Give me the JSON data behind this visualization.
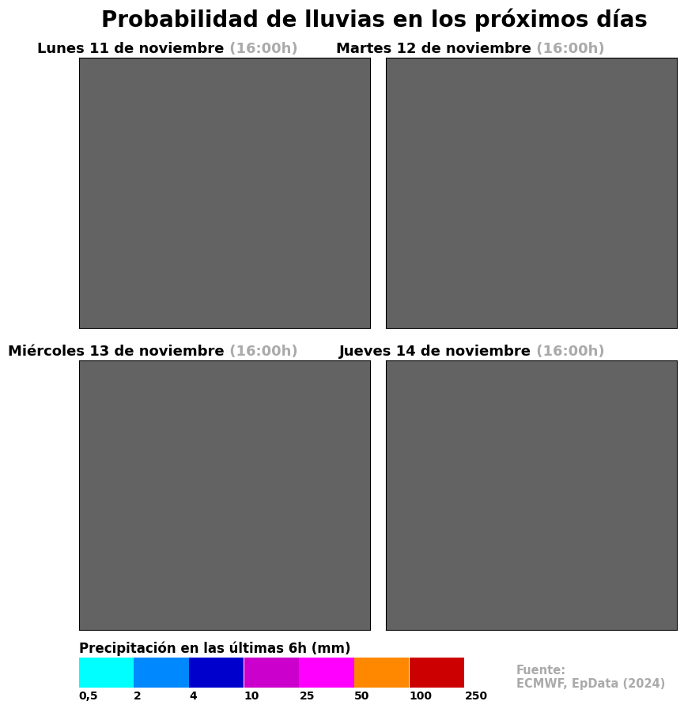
{
  "title": "Probabilidad de lluvias en los próximos días",
  "panels": [
    {
      "title_black": "Lunes 11 de noviembre",
      "title_gray": " (16:00h)"
    },
    {
      "title_black": "Martes 12 de noviembre",
      "title_gray": " (16:00h)"
    },
    {
      "title_black": "Miércoles 13 de noviembre",
      "title_gray": " (16:00h)"
    },
    {
      "title_black": "Jueves 14 de noviembre",
      "title_gray": " (16:00h)"
    }
  ],
  "legend_label": "Precipitación en las últimas 6h (mm)",
  "legend_colors": [
    "#00FFFF",
    "#0088FF",
    "#0000CC",
    "#CC00CC",
    "#FF00FF",
    "#FF8800",
    "#CC0000"
  ],
  "legend_values": [
    "0,5",
    "2",
    "4",
    "10",
    "25",
    "50",
    "100",
    "250"
  ],
  "source_text": "Fuente:\nECMWF, EpData (2024)",
  "bg_color": "#FFFFFF",
  "ocean_color": "#636363",
  "land_color": "#F5DEB3",
  "title_fontsize": 20,
  "subtitle_fontsize": 13,
  "legend_fontsize": 12
}
